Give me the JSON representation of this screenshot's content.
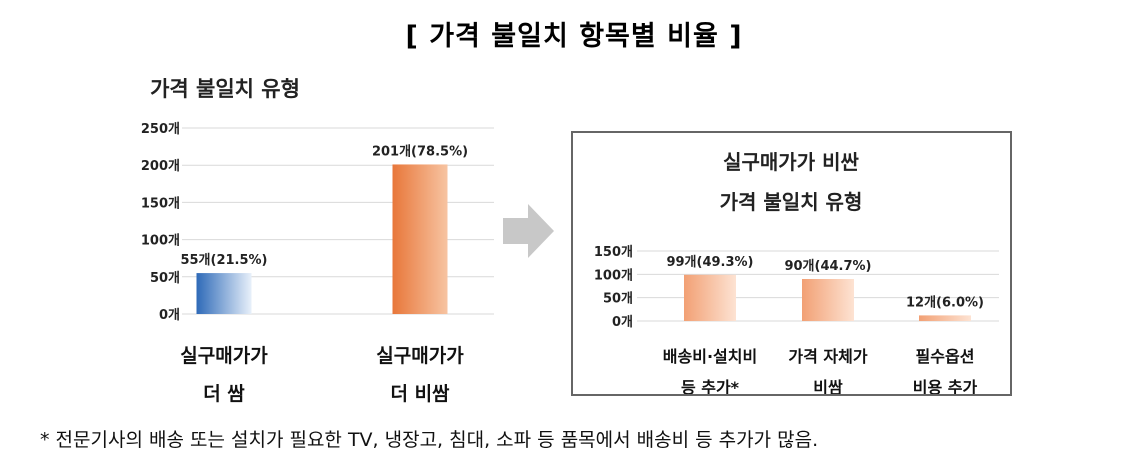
{
  "main_title": "[ 가격 불일치 항목별 비율 ]",
  "footnote": "* 전문기사의 배송 또는 설치가 필요한 TV, 냉장고, 침대, 소파 등 품목에서 배송비 등 추가가 많음.",
  "colors": {
    "left_bar_1_dark": "#2e6ab8",
    "left_bar_1_light": "#e8f0fa",
    "left_bar_2_dark": "#e8773a",
    "left_bar_2_light": "#f7c4a2",
    "right_bar_dark": "#f2a074",
    "right_bar_light": "#fde3d3",
    "gridline": "#d9d9d9",
    "arrow": "#c8c8c8"
  },
  "chart_data": [
    {
      "type": "bar",
      "title": "가격 불일치 유형",
      "ylim": [
        0,
        250
      ],
      "yticks": [
        0,
        50,
        100,
        150,
        200,
        250
      ],
      "ytick_labels": [
        "0개",
        "50개",
        "100개",
        "150개",
        "200개",
        "250개"
      ],
      "grid": true,
      "categories": [
        [
          "실구매가가",
          "더 쌈"
        ],
        [
          "실구매가가",
          "더 비쌈"
        ]
      ],
      "values": [
        55,
        201
      ],
      "data_labels": [
        "55개(21.5%)",
        "201개(78.5%)"
      ]
    },
    {
      "type": "bar",
      "title_lines": [
        "실구매가가 비싼",
        "가격 불일치 유형"
      ],
      "ylim": [
        0,
        150
      ],
      "yticks": [
        0,
        50,
        100,
        150
      ],
      "ytick_labels": [
        "0개",
        "50개",
        "100개",
        "150개"
      ],
      "grid": true,
      "categories": [
        [
          "배송비·설치비",
          "등 추가*"
        ],
        [
          "가격 자체가",
          "비쌈"
        ],
        [
          "필수옵션",
          "비용 추가"
        ]
      ],
      "values": [
        99,
        90,
        12
      ],
      "data_labels": [
        "99개(49.3%)",
        "90개(44.7%)",
        "12개(6.0%)"
      ]
    }
  ]
}
